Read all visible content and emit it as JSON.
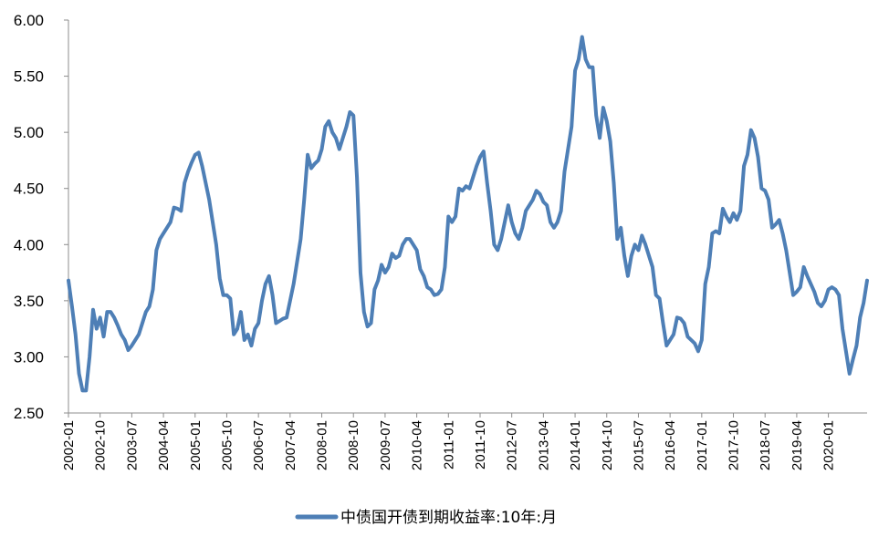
{
  "chart_data": {
    "type": "line",
    "title": "",
    "xlabel": "",
    "ylabel": "",
    "ylim": [
      2.5,
      6.0
    ],
    "y_ticks": [
      "2.50",
      "3.00",
      "3.50",
      "4.00",
      "4.50",
      "5.00",
      "5.50",
      "6.00"
    ],
    "x_tick_labels": [
      "2002-01",
      "2002-10",
      "2003-07",
      "2004-04",
      "2005-01",
      "2005-10",
      "2006-07",
      "2007-04",
      "2008-01",
      "2008-10",
      "2009-07",
      "2010-04",
      "2011-01",
      "2011-10",
      "2012-07",
      "2013-04",
      "2014-01",
      "2014-10",
      "2015-07",
      "2016-04",
      "2017-01",
      "2017-10",
      "2018-07",
      "2019-04",
      "2020-01"
    ],
    "start_month": "2002-01",
    "gridlines": false,
    "legend_position": "bottom",
    "series": [
      {
        "name": "中债国开债到期收益率:10年:月",
        "color": "#4e7fb6",
        "values": [
          3.68,
          3.45,
          3.2,
          2.85,
          2.7,
          2.7,
          3.0,
          3.42,
          3.25,
          3.35,
          3.18,
          3.4,
          3.4,
          3.35,
          3.28,
          3.2,
          3.15,
          3.06,
          3.1,
          3.15,
          3.2,
          3.3,
          3.4,
          3.45,
          3.6,
          3.95,
          4.05,
          4.1,
          4.15,
          4.2,
          4.33,
          4.32,
          4.3,
          4.55,
          4.65,
          4.73,
          4.8,
          4.82,
          4.7,
          4.55,
          4.4,
          4.2,
          4.0,
          3.7,
          3.55,
          3.55,
          3.52,
          3.2,
          3.25,
          3.4,
          3.15,
          3.2,
          3.1,
          3.25,
          3.3,
          3.5,
          3.65,
          3.72,
          3.55,
          3.3,
          3.32,
          3.34,
          3.35,
          3.5,
          3.65,
          3.85,
          4.05,
          4.4,
          4.8,
          4.68,
          4.72,
          4.75,
          4.85,
          5.05,
          5.1,
          5.0,
          4.95,
          4.85,
          4.95,
          5.05,
          5.18,
          5.15,
          4.6,
          3.75,
          3.4,
          3.27,
          3.3,
          3.6,
          3.68,
          3.82,
          3.75,
          3.8,
          3.92,
          3.88,
          3.9,
          4.0,
          4.05,
          4.05,
          4.0,
          3.95,
          3.78,
          3.72,
          3.62,
          3.6,
          3.55,
          3.56,
          3.6,
          3.8,
          4.25,
          4.2,
          4.25,
          4.5,
          4.48,
          4.52,
          4.5,
          4.6,
          4.7,
          4.78,
          4.83,
          4.55,
          4.3,
          4.0,
          3.95,
          4.05,
          4.2,
          4.35,
          4.2,
          4.1,
          4.05,
          4.15,
          4.3,
          4.35,
          4.4,
          4.48,
          4.45,
          4.38,
          4.35,
          4.2,
          4.15,
          4.2,
          4.3,
          4.65,
          4.85,
          5.05,
          5.55,
          5.65,
          5.85,
          5.65,
          5.58,
          5.58,
          5.15,
          4.95,
          5.22,
          5.1,
          4.92,
          4.55,
          4.05,
          4.15,
          3.9,
          3.72,
          3.9,
          4.0,
          3.95,
          4.08,
          4.0,
          3.9,
          3.8,
          3.55,
          3.52,
          3.3,
          3.1,
          3.15,
          3.2,
          3.35,
          3.34,
          3.3,
          3.18,
          3.15,
          3.12,
          3.05,
          3.15,
          3.65,
          3.8,
          4.1,
          4.12,
          4.1,
          4.32,
          4.25,
          4.2,
          4.28,
          4.22,
          4.3,
          4.7,
          4.8,
          5.02,
          4.95,
          4.78,
          4.5,
          4.48,
          4.4,
          4.15,
          4.18,
          4.22,
          4.1,
          3.95,
          3.75,
          3.55,
          3.58,
          3.62,
          3.8,
          3.72,
          3.65,
          3.58,
          3.48,
          3.45,
          3.5,
          3.6,
          3.62,
          3.6,
          3.55,
          3.25,
          3.05,
          2.85,
          2.98,
          3.1,
          3.35,
          3.48,
          3.68
        ]
      }
    ]
  }
}
